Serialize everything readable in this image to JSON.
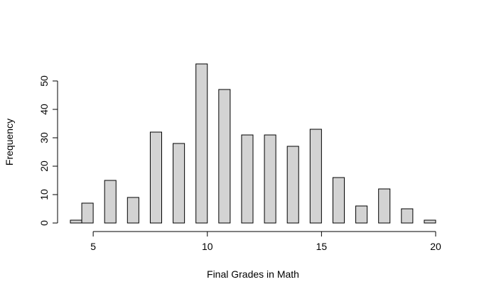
{
  "chart_data": {
    "type": "histogram",
    "x_label": "Final Grades in Math",
    "y_label": "Frequency",
    "bins": [
      4,
      4.5,
      5,
      5.5,
      6,
      6.5,
      7,
      7.5,
      8,
      8.5,
      9,
      9.5,
      10,
      10.5,
      11,
      11.5,
      12,
      12.5,
      13,
      13.5,
      14,
      14.5,
      15,
      15.5,
      16,
      16.5,
      17,
      17.5,
      18,
      18.5,
      19,
      19.5,
      20
    ],
    "counts": [
      1,
      7,
      0,
      15,
      0,
      9,
      0,
      32,
      0,
      28,
      0,
      56,
      0,
      47,
      0,
      31,
      0,
      31,
      0,
      27,
      0,
      33,
      0,
      16,
      0,
      6,
      0,
      12,
      0,
      5,
      0,
      1
    ],
    "color": "#d3d3d3",
    "xlim": [
      4,
      20
    ],
    "xticks": [
      5,
      10,
      15,
      20
    ],
    "ylim": [
      0,
      56
    ],
    "yticks": [
      0,
      10,
      20,
      30,
      40,
      50
    ],
    "grid": false
  }
}
